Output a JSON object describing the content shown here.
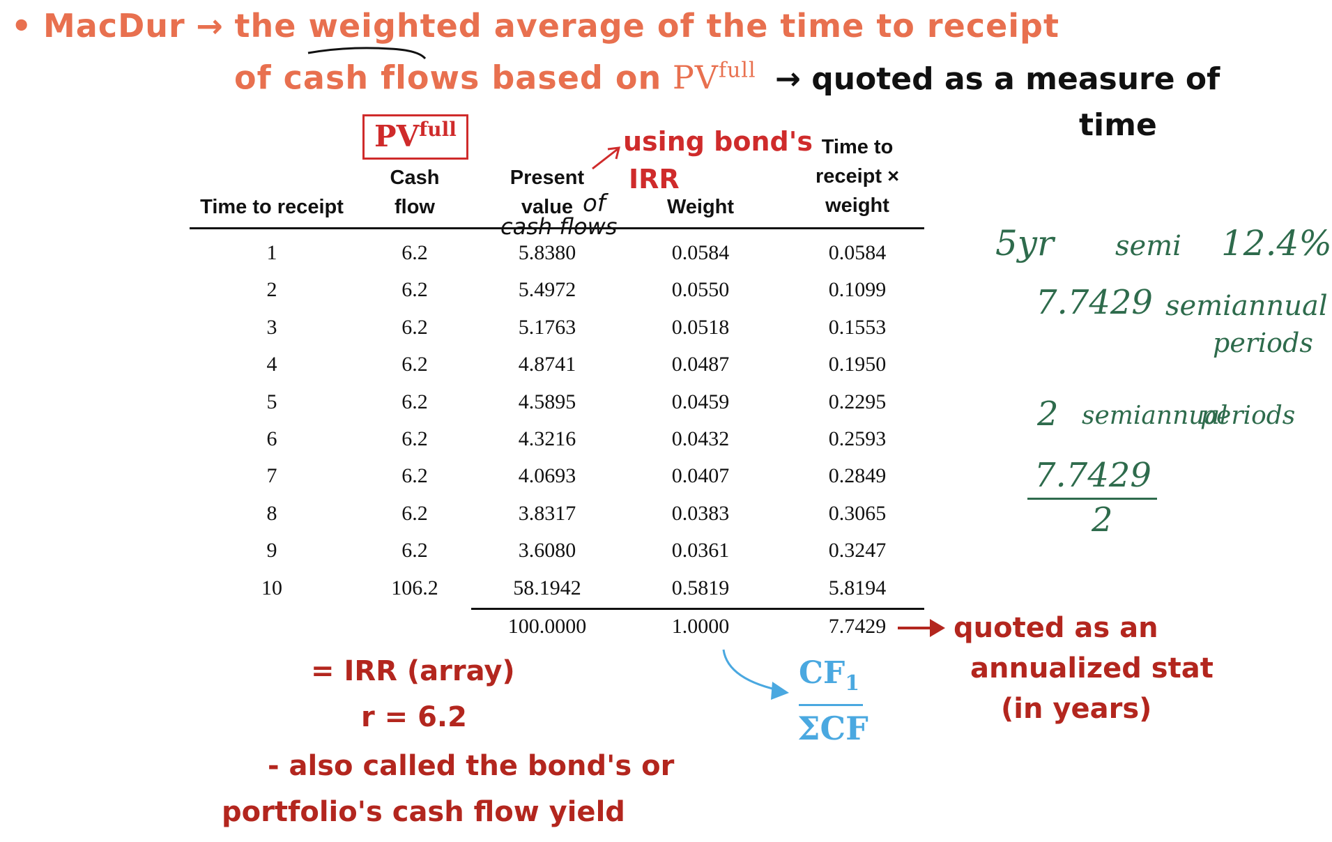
{
  "notes": {
    "line1_bullet": "•",
    "line1_macdur": "MacDur",
    "line1_arrow": "→",
    "line1_text": "the weighted average of the time to receipt",
    "line2_text": "of cash flows based on",
    "pv_base": "PV",
    "pv_sup": "full",
    "line3_arrow": "→",
    "line3_text": "quoted as a measure of",
    "line4_text": "time"
  },
  "annotations": {
    "boxed_pv_base": "PV",
    "boxed_pv_sup": "full",
    "using_line1": "using bond's",
    "using_line2": "IRR",
    "value_of": "of",
    "cash_flows": "cash flows",
    "quoted_line1": "quoted as an",
    "quoted_line2": "annualized stat",
    "quoted_line3": "(in years)",
    "irr_line1": "= IRR (array)",
    "irr_line2": "r = 6.2",
    "irr_line3": "- also called the bond's or",
    "irr_line4": "portfolio's cash flow yield",
    "cf_numerator": "CF",
    "cf_sub": "1",
    "cf_denominator": "ΣCF"
  },
  "green_notes": {
    "g1a": "5yr",
    "g1b": "semi",
    "g1c": "12.4%",
    "g2a": "7.7429",
    "g2b": "semiannual",
    "g2c": "periods",
    "g3a": "2",
    "g3b": "semiannual",
    "g3c": "periods",
    "frac_num": "7.7429",
    "frac_den": "2"
  },
  "table": {
    "headers": {
      "time": "Time to receipt",
      "cash1": "Cash",
      "cash2": "flow",
      "pv1": "Present",
      "pv2": "value",
      "weight": "Weight",
      "tw1": "Time to",
      "tw2": "receipt ×",
      "tw3": "weight"
    },
    "rows": [
      [
        "1",
        "6.2",
        "5.8380",
        "0.0584",
        "0.0584"
      ],
      [
        "2",
        "6.2",
        "5.4972",
        "0.0550",
        "0.1099"
      ],
      [
        "3",
        "6.2",
        "5.1763",
        "0.0518",
        "0.1553"
      ],
      [
        "4",
        "6.2",
        "4.8741",
        "0.0487",
        "0.1950"
      ],
      [
        "5",
        "6.2",
        "4.5895",
        "0.0459",
        "0.2295"
      ],
      [
        "6",
        "6.2",
        "4.3216",
        "0.0432",
        "0.2593"
      ],
      [
        "7",
        "6.2",
        "4.0693",
        "0.0407",
        "0.2849"
      ],
      [
        "8",
        "6.2",
        "3.8317",
        "0.0383",
        "0.3065"
      ],
      [
        "9",
        "6.2",
        "3.6080",
        "0.0361",
        "0.3247"
      ],
      [
        "10",
        "106.2",
        "58.1942",
        "0.5819",
        "5.8194"
      ]
    ],
    "totals": {
      "pv": "100.0000",
      "weight": "1.0000",
      "tw": "7.7429"
    }
  }
}
